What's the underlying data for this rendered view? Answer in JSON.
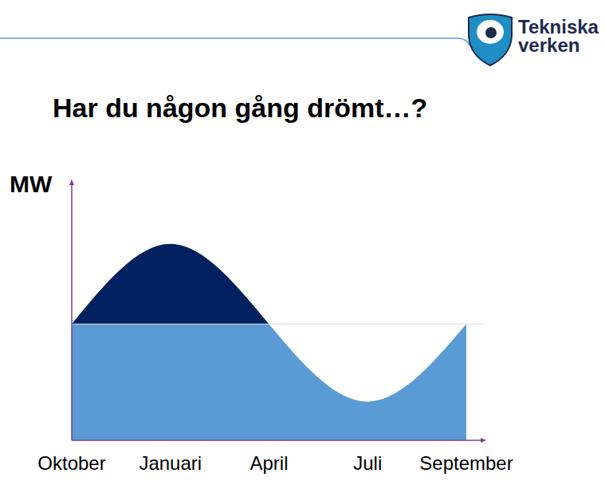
{
  "chart_data": {
    "type": "area",
    "title": "Har du någon gång drömt…?",
    "y_label": "MW",
    "categories": [
      "Oktober",
      "Januari",
      "April",
      "Juli",
      "September"
    ],
    "values": [
      45,
      76,
      45,
      15,
      45
    ],
    "color": "#5b9bd5",
    "baseline": {
      "value": 45,
      "color": "#002060"
    },
    "ylim": [
      0,
      100
    ],
    "grid": false,
    "tick_labels": "x",
    "line_style": "natural"
  },
  "logo": {
    "text": [
      "Tekniska",
      "verken"
    ]
  }
}
